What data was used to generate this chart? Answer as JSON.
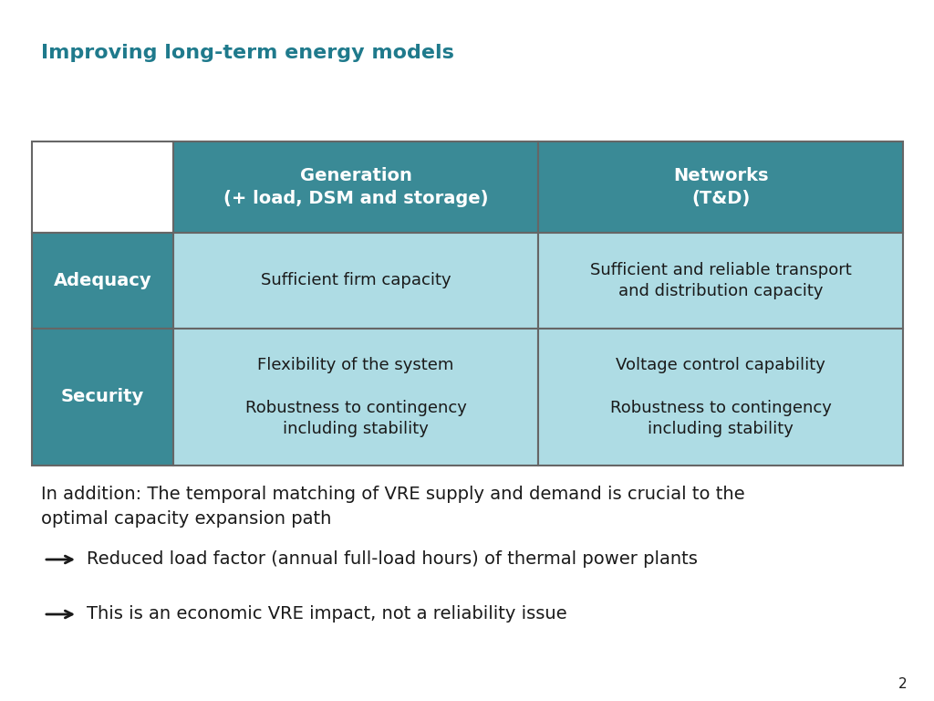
{
  "title": "Improving long-term energy models",
  "title_color": "#1F7A8C",
  "title_fontsize": 16,
  "header_bg": "#3A8A96",
  "header_text_color": "#FFFFFF",
  "row_label_bg": "#3A8A96",
  "row_label_text_color": "#FFFFFF",
  "cell_bg": "#AEDCE4",
  "cell_text_color": "#1a1a1a",
  "border_color": "#666666",
  "empty_cell_bg": "#FFFFFF",
  "col_headers": [
    "Generation\n(+ load, DSM and storage)",
    "Networks\n(T&D)"
  ],
  "row_labels": [
    "Adequacy",
    "Security"
  ],
  "cells": [
    [
      "Sufficient firm capacity",
      "Sufficient and reliable transport\nand distribution capacity"
    ],
    [
      "Flexibility of the system\n\nRobustness to contingency\nincluding stability",
      "Voltage control capability\n\nRobustness to contingency\nincluding stability"
    ]
  ],
  "addition_text": "In addition: The temporal matching of VRE supply and demand is crucial to the\noptimal capacity expansion path",
  "bullet1": "Reduced load factor (annual full-load hours) of thermal power plants",
  "bullet2": "This is an economic VRE impact, not a reliability issue",
  "body_text_color": "#1a1a1a",
  "body_fontsize": 14,
  "page_number": "2",
  "background_color": "#FFFFFF"
}
